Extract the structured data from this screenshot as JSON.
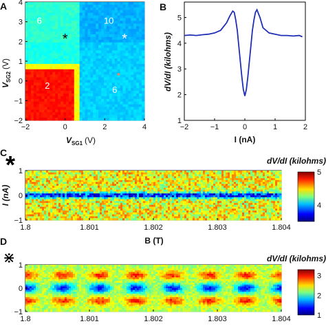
{
  "chart_data": [
    {
      "id": "A",
      "panel_label": "A",
      "type": "heatmap",
      "xlabel_main": "V",
      "xlabel_sub": "SG1",
      "xlabel_unit": "(V)",
      "ylabel_main": "V",
      "ylabel_sub": "SG2",
      "ylabel_unit": "(V)",
      "xlim": [
        -2,
        4
      ],
      "ylim": [
        -2,
        4
      ],
      "xticks": [
        "−2",
        "0",
        "2",
        "4"
      ],
      "yticks": [
        "−2",
        "−1",
        "0",
        "1",
        "2",
        "3",
        "4"
      ],
      "regions": [
        {
          "label": "6",
          "x": -1.3,
          "y": 2.9
        },
        {
          "label": "10",
          "x": 2.2,
          "y": 2.9
        },
        {
          "label": "2",
          "x": -0.9,
          "y": -0.4
        },
        {
          "label": "6",
          "x": 2.5,
          "y": -0.6
        }
      ],
      "markers": [
        {
          "symbol": "*",
          "x": 0.0,
          "y": 2.15,
          "color": "#000000"
        },
        {
          "symbol": "*",
          "x": 3.0,
          "y": 2.15,
          "color": "#ffffff"
        },
        {
          "symbol": "●",
          "x": 2.7,
          "y": 0.5,
          "color": "#e08a5a"
        }
      ]
    },
    {
      "id": "B",
      "panel_label": "B",
      "type": "line",
      "xlabel": "I (nA)",
      "ylabel": "dV/dI (kilohms)",
      "xlim": [
        -2,
        2
      ],
      "ylim": [
        1,
        5.6
      ],
      "xticks": [
        "−2",
        "−1",
        "0",
        "1",
        "2"
      ],
      "yticks": [
        "1",
        "2",
        "3",
        "4",
        "5"
      ],
      "series": [
        {
          "color": "#1f2fb4",
          "x": [
            -2,
            -1.8,
            -1.6,
            -1.4,
            -1.2,
            -1.0,
            -0.8,
            -0.6,
            -0.5,
            -0.4,
            -0.35,
            -0.3,
            -0.25,
            -0.2,
            -0.15,
            -0.1,
            -0.05,
            0,
            0.05,
            0.1,
            0.15,
            0.2,
            0.25,
            0.3,
            0.35,
            0.4,
            0.5,
            0.6,
            0.8,
            1.0,
            1.2,
            1.4,
            1.6,
            1.8,
            1.9
          ],
          "y": [
            4.3,
            4.32,
            4.3,
            4.33,
            4.35,
            4.4,
            4.5,
            4.8,
            5.05,
            5.25,
            5.2,
            4.9,
            4.5,
            3.9,
            3.3,
            2.7,
            2.2,
            1.95,
            2.2,
            2.7,
            3.3,
            3.9,
            4.5,
            4.9,
            5.2,
            5.3,
            5.0,
            4.6,
            4.4,
            4.35,
            4.3,
            4.3,
            4.28,
            4.3,
            4.25
          ]
        }
      ]
    },
    {
      "id": "C",
      "panel_label": "C",
      "type": "heatmap",
      "marker_symbol": "*",
      "xlabel": "B (T)",
      "ylabel": "I (nA)",
      "xlim": [
        1.8,
        1.804
      ],
      "ylim": [
        -1,
        1
      ],
      "xticks": [
        "1.8",
        "1.801",
        "1.802",
        "1.803",
        "1.804"
      ],
      "yticks": [
        "−1",
        "0",
        "1"
      ],
      "colorbar": {
        "label": "dV/dI (kilohms)",
        "min": 3.5,
        "max": 5,
        "ticks": [
          "4",
          "5"
        ]
      },
      "pattern": "uniform horizontal dip band centered at I = 0"
    },
    {
      "id": "D",
      "panel_label": "D",
      "type": "heatmap",
      "marker_symbol": "⋇",
      "xlabel": "B (T)",
      "ylabel": "I (nA)",
      "xlim": [
        1.8,
        1.804
      ],
      "ylim": [
        -1,
        1
      ],
      "xticks": [
        "1.8",
        "1.801",
        "1.802",
        "1.803",
        "1.804"
      ],
      "yticks": [
        "−1",
        "0",
        "1"
      ],
      "colorbar": {
        "label": "dV/dI (kilohms)",
        "min": 1,
        "max": 3.3,
        "ticks": [
          "1",
          "2",
          "3"
        ]
      },
      "pattern": "periodic oscillation of the dip band with B (about 7 periods)"
    }
  ]
}
